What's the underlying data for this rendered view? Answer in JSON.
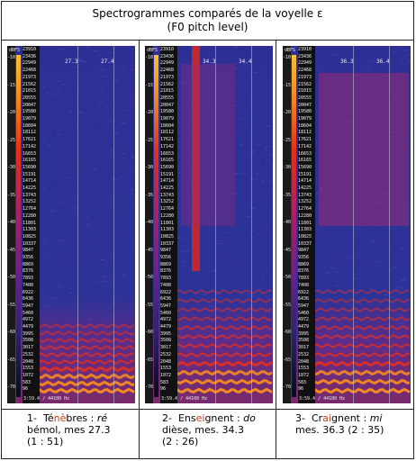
{
  "title": {
    "line1": "Spectrogrammes comparés de la voyelle ɛ",
    "line2": "(F0 pitch level)"
  },
  "db_ticks": [
    "-10",
    "-15",
    "-20",
    "-25",
    "-30",
    "-35",
    "-40",
    "-45",
    "-50",
    "-55",
    "-60",
    "-65",
    "-70"
  ],
  "db_ticks_right": [
    "-10",
    "-15",
    "-20",
    "-25",
    "-30",
    "-35",
    "-40",
    "-45",
    "-50",
    "-55",
    "-60",
    "-65",
    "-70"
  ],
  "dbfs_label": "dBFS",
  "hz_labels": [
    "23910",
    "23436",
    "22949",
    "22468",
    "21973",
    "21562",
    "21015",
    "20555",
    "20047",
    "19580",
    "19079",
    "18604",
    "18112",
    "17621",
    "17142",
    "16653",
    "16165",
    "15690",
    "15191",
    "14714",
    "14225",
    "13743",
    "13252",
    "12764",
    "12280",
    "11801",
    "11303",
    "10825",
    "10337",
    "9847",
    "9356",
    "8869",
    "8376",
    "7893",
    "7408",
    "6922",
    "6436",
    "5947",
    "5460",
    "4972",
    "4479",
    "3995",
    "3508",
    "3017",
    "2532",
    "2048",
    "1553",
    "1072",
    "583",
    "96"
  ],
  "panels": [
    {
      "marks": [
        "27.3",
        "27.4"
      ],
      "footer": "3:59.4 / 44100 Hz",
      "caption": {
        "num": "1-",
        "pre": "Té",
        "hl1": "nè",
        "mid": "bres : ",
        "it": "ré",
        "rest1": "bémol, mes 27.3",
        "rest2": "(1 : 51)"
      }
    },
    {
      "marks": [
        "34.3",
        "34.4"
      ],
      "footer": "3:59.4 / 44100 Hz",
      "caption": {
        "num": "2-",
        "pre": "Ens",
        "hl1": "ei",
        "mid": "gnent : ",
        "it": "do",
        "rest1": "dièse, mes. 34.3",
        "rest2": "(2 : 26)"
      }
    },
    {
      "marks": [
        "36.3",
        "36.4"
      ],
      "footer": "3:59.4 / 44100 Hz",
      "caption": {
        "num": "3-",
        "pre": "Cr",
        "hl1": "ai",
        "mid": "gnent : ",
        "it": "mi",
        "rest1": "mes. 36.3 (2 : 35)",
        "rest2": ""
      }
    }
  ],
  "colors": {
    "noise": "#2a2c8c",
    "harmonic": "#e8301c",
    "hot": "#f58a20"
  }
}
